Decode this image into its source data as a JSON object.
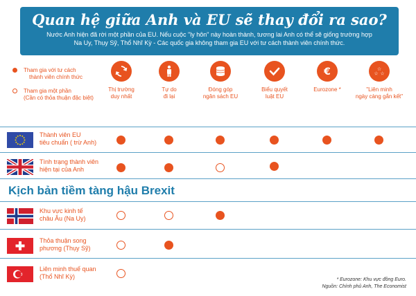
{
  "header": {
    "title": "Quan hệ giữa Anh và EU sẽ thay đổi ra sao?",
    "subtitle_line1": "Nước Anh hiện đã rời một phần của EU. Nếu cuộc \"ly hôn\" này hoàn thành, tương lai Anh có thể sẽ giống trường hợp",
    "subtitle_line2": "Na Uy, Thụy Sỹ, Thổ Nhĩ Kỳ - Các quốc gia không tham gia EU với tư cách thành viên chính thức."
  },
  "legend": {
    "full_line1": "Tham gia với tư cách",
    "full_line2": "thành viên chính thức",
    "partial_line1": "Tham gia một phần",
    "partial_line2": "(Cần có thỏa thuận đặc biệt)"
  },
  "categories": [
    {
      "line1": "Thị trường",
      "line2": "duy nhất",
      "icon": "arrows-cycle-icon"
    },
    {
      "line1": "Tự do",
      "line2": "đi lại",
      "icon": "person-icon"
    },
    {
      "line1": "Đóng góp",
      "line2": "ngân sách EU",
      "icon": "coins-icon"
    },
    {
      "line1": "Biểu quyết",
      "line2": "luật EU",
      "icon": "checkmark-icon"
    },
    {
      "line1": "Eurozone *",
      "line2": "",
      "icon": "euro-icon"
    },
    {
      "line1": "\"Liên minh",
      "line2": "ngày càng gắn kết\"",
      "icon": "stars-icon"
    }
  ],
  "rows": [
    {
      "line1": "Thành viên EU",
      "line2": "tiêu chuẩn ( trừ Anh)",
      "flag": "eu-flag",
      "status": [
        "full",
        "full",
        "full",
        "full",
        "full",
        "full"
      ]
    },
    {
      "line1": "Tình trạng thành viên",
      "line2": "hiện tại của Anh",
      "flag": "uk-flag",
      "status": [
        "full",
        "full",
        "partial",
        "full",
        "none",
        "none"
      ]
    }
  ],
  "section_title": "Kịch bản tiềm tàng hậu Brexit",
  "scenarios": [
    {
      "line1": "Khu vực kinh tế",
      "line2": "châu  Âu (Na Uy)",
      "flag": "norway-flag",
      "status": [
        "partial",
        "partial",
        "full",
        "none",
        "none",
        "none"
      ]
    },
    {
      "line1": "Thỏa thuận song",
      "line2": "phương (Thụy Sỹ)",
      "flag": "switzerland-flag",
      "status": [
        "partial",
        "full",
        "none",
        "none",
        "none",
        "none"
      ]
    },
    {
      "line1": "Liên minh thuế quan",
      "line2": "(Thổ Nhĩ Kỳ)",
      "flag": "turkey-flag",
      "status": [
        "partial",
        "none",
        "none",
        "none",
        "none",
        "none"
      ]
    }
  ],
  "footnote": {
    "line1": "* Eurozone: Khu vực đồng Euro.",
    "line2": "Nguồn: Chính phủ Anh, The Economist"
  },
  "colors": {
    "accent": "#e8531f",
    "header_bg": "#1f7dab",
    "divider": "#5aa0c6"
  }
}
